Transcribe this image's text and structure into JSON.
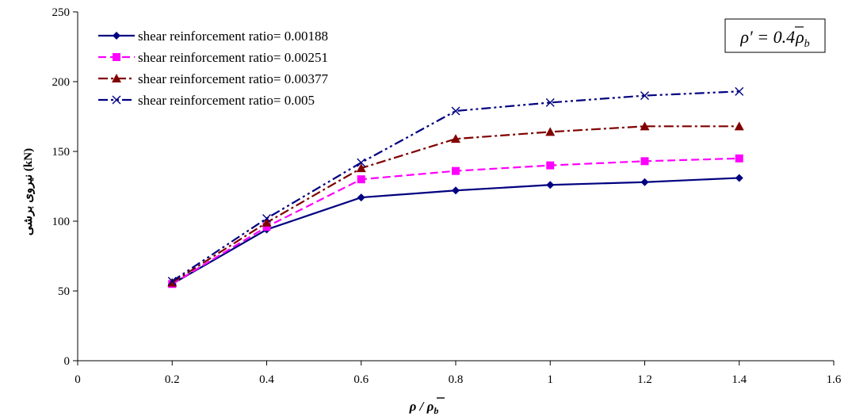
{
  "chart_data": {
    "type": "line",
    "xlabel": "ρ / ρ̄b",
    "ylabel": "نیروی برشی (kN)",
    "xlim": [
      0,
      1.6
    ],
    "ylim": [
      0,
      250
    ],
    "x_ticks": [
      "0",
      "0.2",
      "0.4",
      "0.6",
      "0.8",
      "1",
      "1.2",
      "1.4",
      "1.6"
    ],
    "y_ticks": [
      "0",
      "50",
      "100",
      "150",
      "200",
      "250"
    ],
    "grid": false,
    "legend_position": "top-left",
    "annotation": "ρ′ = 0.4ρ̄b",
    "x": [
      0.2,
      0.4,
      0.6,
      0.8,
      1.0,
      1.2,
      1.4
    ],
    "series": [
      {
        "name": "shear reinforcement ratio= 0.00188",
        "color": "#000080",
        "marker": "diamond",
        "dash": "solid",
        "values": [
          55,
          94,
          117,
          122,
          126,
          128,
          131
        ]
      },
      {
        "name": "shear reinforcement ratio= 0.00251",
        "color": "#FF00FF",
        "marker": "square",
        "dash": "dashed",
        "values": [
          55,
          96,
          130,
          136,
          140,
          143,
          145
        ]
      },
      {
        "name": "shear reinforcement ratio= 0.00377",
        "color": "#800000",
        "marker": "triangle",
        "dash": "dashdot",
        "values": [
          56,
          99,
          138,
          159,
          164,
          168,
          168
        ]
      },
      {
        "name": "shear reinforcement ratio= 0.005",
        "color": "#000080",
        "marker": "x",
        "dash": "dashdotdot",
        "values": [
          57,
          102,
          142,
          179,
          185,
          190,
          193
        ]
      }
    ]
  }
}
